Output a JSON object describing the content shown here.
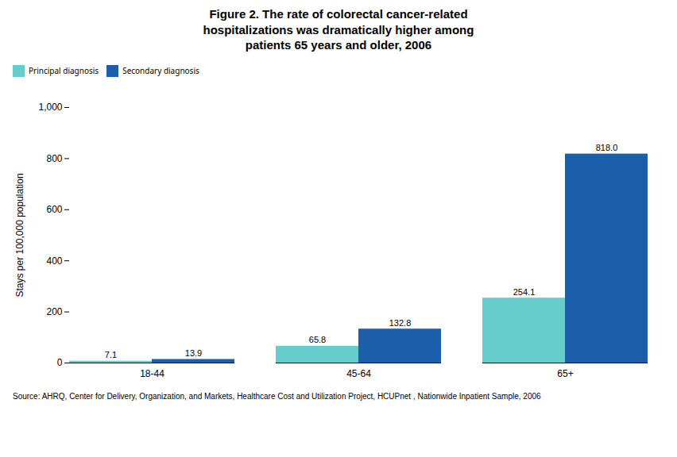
{
  "chart_data": {
    "type": "bar",
    "title": "Figure 2. The rate of colorectal cancer-related\nhospitalizations was dramatically higher among\npatients 65 years and older, 2006",
    "categories": [
      "18-44",
      "45-64",
      "65+"
    ],
    "series": [
      {
        "name": "Principal diagnosis",
        "color": "#66CCCC",
        "values": [
          7.1,
          65.8,
          254.1
        ]
      },
      {
        "name": "Secondary diagnosis",
        "color": "#1B5FAA",
        "values": [
          13.9,
          132.8,
          818.0
        ],
        "value_labels": [
          "13.9",
          "132.8",
          "818.0"
        ]
      }
    ],
    "ylabel": "Stays per 100,000 population",
    "ylim": [
      0,
      1000
    ],
    "yticks": [
      0,
      200,
      400,
      600,
      800,
      {
        "value": 1000,
        "label": "1,000"
      }
    ],
    "grid": false,
    "legend": "top",
    "data_labels": true,
    "source": "Source: AHRQ, Center for Delivery, Organization, and Markets, Healthcare Cost and Utilization Project, HCUPnet , Nationwide Inpatient Sample, 2006"
  }
}
